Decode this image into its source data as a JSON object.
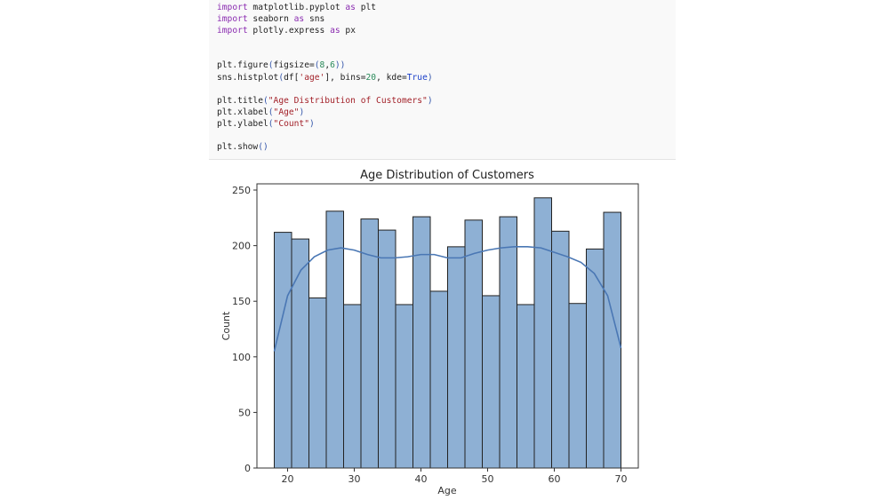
{
  "code_cell": {
    "lines": [
      [
        {
          "t": "import",
          "c": "kw"
        },
        {
          "t": " matplotlib.pyplot ",
          "c": ""
        },
        {
          "t": "as",
          "c": "kw"
        },
        {
          "t": " plt",
          "c": ""
        }
      ],
      [
        {
          "t": "import",
          "c": "kw"
        },
        {
          "t": " seaborn ",
          "c": ""
        },
        {
          "t": "as",
          "c": "kw"
        },
        {
          "t": " sns",
          "c": ""
        }
      ],
      [
        {
          "t": "import",
          "c": "kw"
        },
        {
          "t": " plotly.express ",
          "c": ""
        },
        {
          "t": "as",
          "c": "kw"
        },
        {
          "t": " px",
          "c": ""
        }
      ],
      [],
      [],
      [
        {
          "t": "plt.figure",
          "c": ""
        },
        {
          "t": "(",
          "c": "par"
        },
        {
          "t": "figsize=",
          "c": ""
        },
        {
          "t": "(",
          "c": "par"
        },
        {
          "t": "8",
          "c": "num"
        },
        {
          "t": ",",
          "c": ""
        },
        {
          "t": "6",
          "c": "num"
        },
        {
          "t": "))",
          "c": "par"
        }
      ],
      [
        {
          "t": "sns.histplot",
          "c": ""
        },
        {
          "t": "(",
          "c": "par"
        },
        {
          "t": "df[",
          "c": ""
        },
        {
          "t": "'age'",
          "c": "str"
        },
        {
          "t": "], bins=",
          "c": ""
        },
        {
          "t": "20",
          "c": "num"
        },
        {
          "t": ", kde=",
          "c": ""
        },
        {
          "t": "True",
          "c": "cst"
        },
        {
          "t": ")",
          "c": "par"
        }
      ],
      [],
      [
        {
          "t": "plt.title",
          "c": ""
        },
        {
          "t": "(",
          "c": "par"
        },
        {
          "t": "\"Age Distribution of Customers\"",
          "c": "str"
        },
        {
          "t": ")",
          "c": "par"
        }
      ],
      [
        {
          "t": "plt.xlabel",
          "c": ""
        },
        {
          "t": "(",
          "c": "par"
        },
        {
          "t": "\"Age\"",
          "c": "str"
        },
        {
          "t": ")",
          "c": "par"
        }
      ],
      [
        {
          "t": "plt.ylabel",
          "c": ""
        },
        {
          "t": "(",
          "c": "par"
        },
        {
          "t": "\"Count\"",
          "c": "str"
        },
        {
          "t": ")",
          "c": "par"
        }
      ],
      [],
      [
        {
          "t": "plt.show",
          "c": ""
        },
        {
          "t": "()",
          "c": "par"
        }
      ]
    ]
  },
  "chart_data": {
    "type": "bar",
    "title": "Age Distribution of Customers",
    "xlabel": "Age",
    "ylabel": "Count",
    "bin_start": 18,
    "bin_end": 70,
    "bins": 20,
    "values": [
      212,
      206,
      153,
      231,
      147,
      224,
      214,
      147,
      226,
      159,
      199,
      223,
      155,
      226,
      147,
      243,
      213,
      148,
      197,
      230
    ],
    "kde": {
      "x": [
        18,
        20,
        22,
        24,
        26,
        28,
        30,
        32,
        34,
        36,
        38,
        40,
        42,
        44,
        46,
        48,
        50,
        52,
        54,
        56,
        58,
        60,
        62,
        64,
        66,
        68,
        70
      ],
      "y": [
        105,
        155,
        178,
        190,
        196,
        198,
        196,
        192,
        189,
        189,
        190,
        192,
        192,
        189,
        189,
        193,
        196,
        198,
        199,
        199,
        198,
        194,
        190,
        185,
        175,
        155,
        108
      ]
    },
    "xlim": [
      15.4,
      72.6
    ],
    "ylim": [
      0,
      255.6
    ],
    "xticks": [
      "20",
      "30",
      "40",
      "50",
      "60",
      "70"
    ],
    "yticks": [
      "0",
      "50",
      "100",
      "150",
      "200",
      "250"
    ],
    "grid": false,
    "bar_color": "#8eb0d4",
    "line_color": "#4a77b4"
  }
}
